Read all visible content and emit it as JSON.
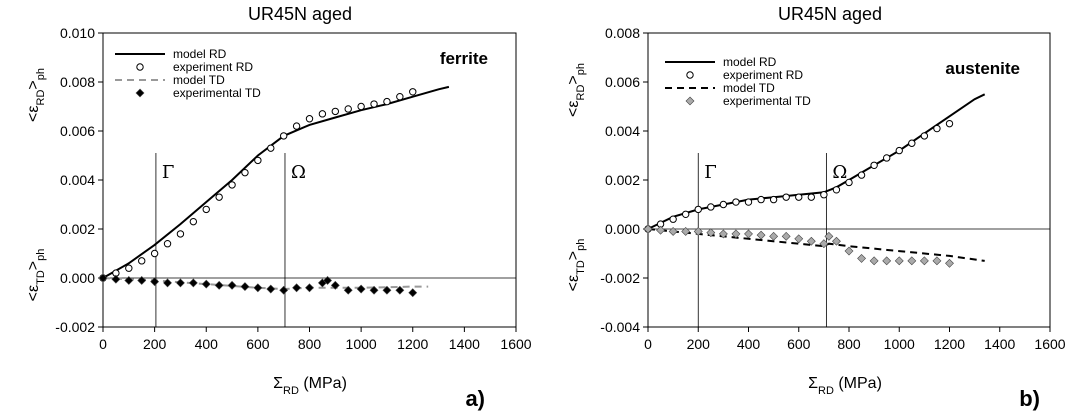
{
  "chart_data": [
    {
      "type": "line",
      "title": "UR45N  aged",
      "phase_label": "ferrite",
      "panel_label": "a)",
      "xlabel": "Σ_RD (MPa)",
      "ylabel_top": "<ε_RD>_ph",
      "ylabel_bottom": "<ε_TD>_ph",
      "xlim": [
        0,
        1600
      ],
      "ylim": [
        -0.002,
        0.01
      ],
      "x_ticks": [
        0,
        200,
        400,
        600,
        800,
        1000,
        1200,
        1400,
        1600
      ],
      "x_tick_labels": [
        "0",
        "200",
        "400",
        "600",
        "800",
        "1000",
        "1200",
        "1400",
        "1600"
      ],
      "y_ticks": [
        -0.002,
        0,
        0.002,
        0.004,
        0.006,
        0.008,
        0.01
      ],
      "y_tick_labels": [
        "-0.002",
        "0.000",
        "0.002",
        "0.004",
        "0.006",
        "0.008",
        "0.010"
      ],
      "markers": [
        {
          "label": "Γ",
          "x": 205
        },
        {
          "label": "Ω",
          "x": 705
        }
      ],
      "legend": [
        "model RD",
        "experiment RD",
        "model TD",
        "experimental TD"
      ],
      "series": [
        {
          "name": "model RD",
          "style": "solid",
          "color": "#000000",
          "x": [
            0,
            100,
            200,
            300,
            400,
            500,
            600,
            700,
            800,
            900,
            1000,
            1100,
            1200,
            1300,
            1340
          ],
          "y": [
            0,
            0.0006,
            0.00135,
            0.0022,
            0.0031,
            0.004,
            0.005,
            0.0058,
            0.00625,
            0.00655,
            0.00685,
            0.0071,
            0.0074,
            0.0077,
            0.0078
          ]
        },
        {
          "name": "experiment RD",
          "style": "open-circle",
          "color": "#000000",
          "x": [
            0,
            50,
            100,
            150,
            200,
            250,
            300,
            350,
            400,
            450,
            500,
            550,
            600,
            650,
            700,
            750,
            800,
            850,
            900,
            950,
            1000,
            1050,
            1100,
            1150,
            1200
          ],
          "y": [
            0,
            0.0002,
            0.0004,
            0.0007,
            0.001,
            0.0014,
            0.0018,
            0.0023,
            0.0028,
            0.0033,
            0.0038,
            0.0043,
            0.0048,
            0.0053,
            0.0058,
            0.0062,
            0.0065,
            0.0067,
            0.0068,
            0.0069,
            0.007,
            0.0071,
            0.0072,
            0.0074,
            0.0076
          ]
        },
        {
          "name": "model TD",
          "style": "dashed",
          "color": "#999999",
          "x": [
            0,
            200,
            400,
            600,
            700,
            800,
            1000,
            1200,
            1260
          ],
          "y": [
            0,
            -0.0001,
            -0.00025,
            -0.0004,
            -0.00045,
            -0.0004,
            -0.0004,
            -0.00035,
            -0.00035
          ]
        },
        {
          "name": "experimental TD",
          "style": "filled-diamond",
          "color": "#000000",
          "x": [
            0,
            50,
            100,
            150,
            200,
            250,
            300,
            350,
            400,
            450,
            500,
            550,
            600,
            650,
            700,
            750,
            800,
            850,
            870,
            900,
            950,
            1000,
            1050,
            1100,
            1150,
            1200
          ],
          "y": [
            0,
            -5e-05,
            -0.0001,
            -0.0001,
            -0.00015,
            -0.0002,
            -0.0002,
            -0.0002,
            -0.00025,
            -0.0003,
            -0.0003,
            -0.00035,
            -0.0004,
            -0.00045,
            -0.0005,
            -0.0004,
            -0.0004,
            -0.0002,
            -0.0001,
            -0.0003,
            -0.0005,
            -0.00045,
            -0.0005,
            -0.0005,
            -0.0005,
            -0.0006
          ]
        }
      ]
    },
    {
      "type": "line",
      "title": "UR45N  aged",
      "phase_label": "austenite",
      "panel_label": "b)",
      "xlabel": "Σ_RD (MPa)",
      "ylabel_top": "<ε_RD>_ph",
      "ylabel_bottom": "<ε_TD>_ph",
      "xlim": [
        0,
        1600
      ],
      "ylim": [
        -0.004,
        0.008
      ],
      "x_ticks": [
        0,
        200,
        400,
        600,
        800,
        1000,
        1200,
        1400,
        1600
      ],
      "x_tick_labels": [
        "0",
        "200",
        "400",
        "600",
        "800",
        "1000",
        "1200",
        "1400",
        "1600"
      ],
      "y_ticks": [
        -0.004,
        -0.002,
        0,
        0.002,
        0.004,
        0.006,
        0.008
      ],
      "y_tick_labels": [
        "-0.004",
        "-0.002",
        "0.000",
        "0.002",
        "0.004",
        "0.006",
        "0.008"
      ],
      "markers": [
        {
          "label": "Γ",
          "x": 200
        },
        {
          "label": "Ω",
          "x": 710
        }
      ],
      "legend": [
        "model RD",
        "experiment RD",
        "model TD",
        "experimental TD"
      ],
      "series": [
        {
          "name": "model RD",
          "style": "solid",
          "color": "#000000",
          "x": [
            0,
            100,
            200,
            300,
            400,
            500,
            600,
            700,
            750,
            800,
            900,
            1000,
            1100,
            1200,
            1300,
            1340
          ],
          "y": [
            0,
            0.0005,
            0.0008,
            0.001,
            0.0012,
            0.0013,
            0.0014,
            0.0015,
            0.0017,
            0.002,
            0.0026,
            0.0032,
            0.0039,
            0.0046,
            0.0053,
            0.0055
          ]
        },
        {
          "name": "experiment RD",
          "style": "open-circle",
          "color": "#000000",
          "x": [
            0,
            50,
            100,
            150,
            200,
            250,
            300,
            350,
            400,
            450,
            500,
            550,
            600,
            650,
            700,
            750,
            800,
            850,
            900,
            950,
            1000,
            1050,
            1100,
            1150,
            1200
          ],
          "y": [
            0,
            0.0002,
            0.0004,
            0.0006,
            0.0008,
            0.0009,
            0.001,
            0.0011,
            0.0011,
            0.0012,
            0.0012,
            0.0013,
            0.0013,
            0.0013,
            0.0014,
            0.0016,
            0.0019,
            0.0022,
            0.0026,
            0.0029,
            0.0032,
            0.0035,
            0.0038,
            0.0041,
            0.0043
          ]
        },
        {
          "name": "model TD",
          "style": "dashed",
          "color": "#000000",
          "x": [
            0,
            200,
            400,
            600,
            700,
            720,
            800,
            1000,
            1200,
            1340
          ],
          "y": [
            0,
            -0.0002,
            -0.0004,
            -0.0006,
            -0.0007,
            -0.0006,
            -0.0007,
            -0.0009,
            -0.0011,
            -0.0013
          ]
        },
        {
          "name": "experimental TD",
          "style": "filled-diamond",
          "color": "#aaaaaa",
          "x": [
            0,
            50,
            100,
            150,
            200,
            250,
            300,
            350,
            400,
            450,
            500,
            550,
            600,
            650,
            700,
            720,
            750,
            800,
            850,
            900,
            950,
            1000,
            1050,
            1100,
            1150,
            1200
          ],
          "y": [
            0,
            -5e-05,
            -0.0001,
            -0.0001,
            -0.0001,
            -0.00015,
            -0.0002,
            -0.0002,
            -0.0002,
            -0.00025,
            -0.0003,
            -0.0003,
            -0.0004,
            -0.0005,
            -0.0006,
            -0.0003,
            -0.0005,
            -0.0009,
            -0.0012,
            -0.0013,
            -0.0013,
            -0.0013,
            -0.0013,
            -0.0013,
            -0.0013,
            -0.0014
          ]
        }
      ]
    }
  ]
}
